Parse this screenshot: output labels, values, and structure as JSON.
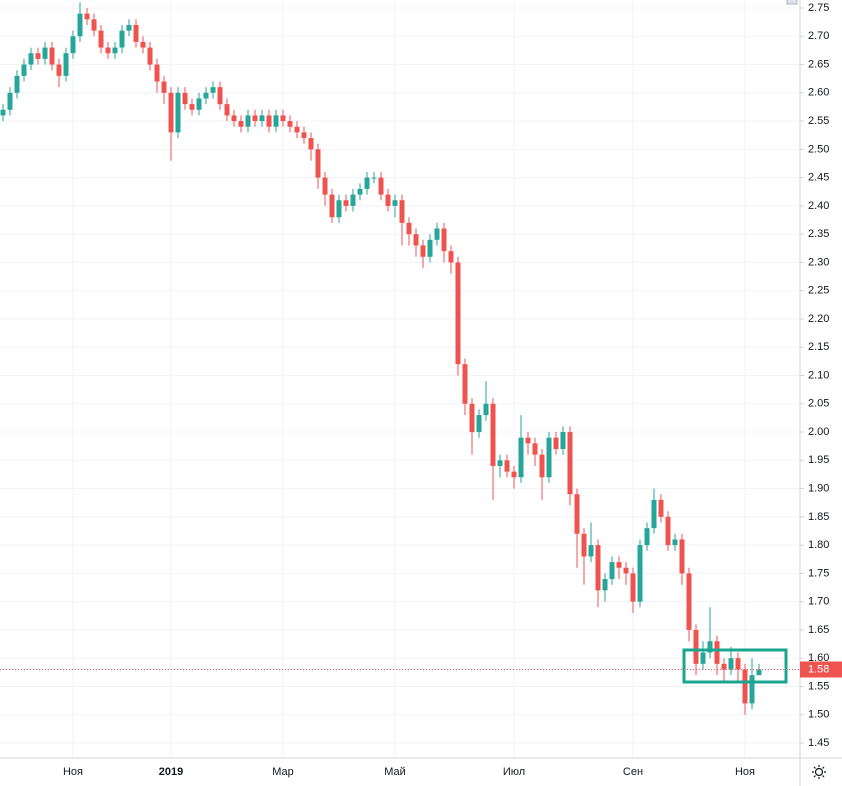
{
  "chart_data": {
    "type": "candlestick",
    "categories": [
      null,
      null,
      null,
      null,
      null,
      null,
      null,
      null,
      null,
      null,
      "Ноя",
      null,
      null,
      null,
      null,
      null,
      null,
      null,
      null,
      null,
      null,
      null,
      null,
      null,
      "2019",
      null,
      null,
      null,
      null,
      null,
      null,
      null,
      null,
      null,
      null,
      null,
      null,
      null,
      null,
      null,
      "Мар",
      null,
      null,
      null,
      null,
      null,
      null,
      null,
      null,
      null,
      null,
      null,
      null,
      null,
      null,
      null,
      "Май",
      null,
      null,
      null,
      null,
      null,
      null,
      null,
      null,
      null,
      null,
      null,
      null,
      null,
      null,
      null,
      null,
      "Июл",
      null,
      null,
      null,
      null,
      null,
      null,
      null,
      null,
      null,
      null,
      null,
      null,
      null,
      null,
      null,
      null,
      "Сен",
      null,
      null,
      null,
      null,
      null,
      null,
      null,
      null,
      null,
      null,
      null,
      null,
      null,
      null,
      null,
      "Ноя",
      null,
      null
    ],
    "open": [
      2.56,
      2.57,
      2.6,
      2.63,
      2.65,
      2.67,
      2.66,
      2.68,
      2.65,
      2.63,
      2.67,
      2.7,
      2.74,
      2.73,
      2.71,
      2.68,
      2.67,
      2.68,
      2.71,
      2.72,
      2.69,
      2.68,
      2.65,
      2.62,
      2.6,
      2.53,
      2.6,
      2.58,
      2.57,
      2.59,
      2.6,
      2.61,
      2.58,
      2.56,
      2.55,
      2.54,
      2.56,
      2.55,
      2.56,
      2.54,
      2.56,
      2.55,
      2.54,
      2.53,
      2.52,
      2.5,
      2.45,
      2.42,
      2.38,
      2.41,
      2.4,
      2.42,
      2.43,
      2.45,
      2.45,
      2.42,
      2.4,
      2.41,
      2.37,
      2.35,
      2.33,
      2.31,
      2.34,
      2.36,
      2.32,
      2.3,
      2.12,
      2.05,
      2.0,
      2.03,
      2.05,
      1.94,
      1.95,
      1.93,
      1.92,
      1.99,
      1.98,
      1.96,
      1.92,
      1.99,
      1.97,
      2.0,
      1.89,
      1.82,
      1.78,
      1.8,
      1.72,
      1.74,
      1.77,
      1.76,
      1.75,
      1.7,
      1.8,
      1.83,
      1.88,
      1.85,
      1.8,
      1.81,
      1.75,
      1.65,
      1.59,
      1.61,
      1.63,
      1.59,
      1.58,
      1.6,
      1.58,
      1.52,
      1.57
    ],
    "high": [
      2.58,
      2.61,
      2.64,
      2.66,
      2.68,
      2.68,
      2.69,
      2.69,
      2.66,
      2.68,
      2.71,
      2.76,
      2.75,
      2.74,
      2.72,
      2.69,
      2.69,
      2.72,
      2.73,
      2.73,
      2.7,
      2.69,
      2.66,
      2.63,
      2.61,
      2.61,
      2.61,
      2.59,
      2.6,
      2.61,
      2.62,
      2.62,
      2.59,
      2.57,
      2.56,
      2.57,
      2.57,
      2.57,
      2.57,
      2.57,
      2.57,
      2.56,
      2.55,
      2.54,
      2.53,
      2.51,
      2.46,
      2.43,
      2.42,
      2.42,
      2.43,
      2.44,
      2.46,
      2.46,
      2.46,
      2.43,
      2.42,
      2.42,
      2.38,
      2.36,
      2.34,
      2.35,
      2.37,
      2.37,
      2.33,
      2.31,
      2.13,
      2.06,
      2.04,
      2.09,
      2.06,
      1.96,
      1.96,
      1.94,
      2.03,
      2.0,
      1.99,
      1.97,
      2.0,
      2.0,
      2.01,
      2.01,
      1.9,
      1.83,
      1.84,
      1.81,
      1.75,
      1.78,
      1.78,
      1.77,
      1.76,
      1.81,
      1.84,
      1.9,
      1.89,
      1.86,
      1.82,
      1.82,
      1.76,
      1.66,
      1.63,
      1.69,
      1.64,
      1.6,
      1.62,
      1.61,
      1.59,
      1.6,
      1.59
    ],
    "low": [
      2.55,
      2.56,
      2.59,
      2.62,
      2.64,
      2.65,
      2.65,
      2.64,
      2.61,
      2.62,
      2.66,
      2.69,
      2.72,
      2.7,
      2.67,
      2.66,
      2.66,
      2.67,
      2.7,
      2.68,
      2.67,
      2.64,
      2.6,
      2.58,
      2.48,
      2.52,
      2.57,
      2.56,
      2.56,
      2.58,
      2.59,
      2.57,
      2.55,
      2.54,
      2.53,
      2.53,
      2.54,
      2.54,
      2.53,
      2.53,
      2.54,
      2.53,
      2.52,
      2.51,
      2.48,
      2.43,
      2.4,
      2.37,
      2.37,
      2.39,
      2.39,
      2.41,
      2.42,
      2.44,
      2.41,
      2.39,
      2.38,
      2.33,
      2.33,
      2.31,
      2.29,
      2.3,
      2.33,
      2.3,
      2.28,
      2.1,
      2.03,
      1.96,
      1.99,
      2.02,
      1.88,
      1.92,
      1.92,
      1.9,
      1.91,
      1.96,
      1.94,
      1.88,
      1.91,
      1.96,
      1.96,
      1.87,
      1.76,
      1.73,
      1.77,
      1.69,
      1.7,
      1.73,
      1.74,
      1.73,
      1.68,
      1.69,
      1.79,
      1.82,
      1.84,
      1.79,
      1.79,
      1.73,
      1.63,
      1.57,
      1.58,
      1.6,
      1.57,
      1.56,
      1.57,
      1.56,
      1.5,
      1.51,
      1.57
    ],
    "close": [
      2.57,
      2.6,
      2.63,
      2.65,
      2.67,
      2.66,
      2.68,
      2.65,
      2.63,
      2.67,
      2.7,
      2.74,
      2.73,
      2.71,
      2.68,
      2.67,
      2.68,
      2.71,
      2.72,
      2.69,
      2.68,
      2.65,
      2.62,
      2.6,
      2.53,
      2.6,
      2.58,
      2.57,
      2.59,
      2.6,
      2.61,
      2.58,
      2.56,
      2.55,
      2.54,
      2.56,
      2.55,
      2.56,
      2.54,
      2.56,
      2.55,
      2.54,
      2.53,
      2.52,
      2.5,
      2.45,
      2.42,
      2.38,
      2.41,
      2.4,
      2.42,
      2.43,
      2.45,
      2.45,
      2.42,
      2.4,
      2.41,
      2.37,
      2.35,
      2.33,
      2.31,
      2.34,
      2.36,
      2.32,
      2.3,
      2.12,
      2.05,
      2.0,
      2.03,
      2.05,
      1.94,
      1.95,
      1.93,
      1.92,
      1.99,
      1.98,
      1.96,
      1.92,
      1.99,
      1.97,
      2.0,
      1.89,
      1.82,
      1.78,
      1.8,
      1.72,
      1.74,
      1.77,
      1.76,
      1.75,
      1.7,
      1.8,
      1.83,
      1.88,
      1.85,
      1.8,
      1.81,
      1.75,
      1.65,
      1.59,
      1.61,
      1.63,
      1.59,
      1.58,
      1.6,
      1.58,
      1.52,
      1.57,
      1.58
    ],
    "up_color": "#26a69a",
    "down_color": "#ef5350",
    "last_price": 1.58,
    "ylim": [
      1.45,
      2.75
    ],
    "yticks": [
      1.45,
      {
        "value": 1.5,
        "label": "1.50"
      },
      1.55,
      {
        "value": 1.6,
        "label": "1.60"
      },
      1.65,
      {
        "value": 1.7,
        "label": "1.70"
      },
      1.75,
      {
        "value": 1.8,
        "label": "1.80"
      },
      1.85,
      {
        "value": 1.9,
        "label": "1.90"
      },
      1.95,
      {
        "value": 2,
        "label": "2.00"
      },
      2.05,
      {
        "value": 2.1,
        "label": "2.10"
      },
      2.15,
      {
        "value": 2.2,
        "label": "2.20"
      },
      2.25,
      {
        "value": 2.3,
        "label": "2.30"
      },
      2.35,
      {
        "value": 2.4,
        "label": "2.40"
      },
      2.45,
      {
        "value": 2.5,
        "label": "2.50"
      },
      2.55,
      {
        "value": 2.6,
        "label": "2.60"
      },
      2.65,
      {
        "value": 2.7,
        "label": "2.70"
      },
      2.75
    ],
    "grid": true
  }
}
